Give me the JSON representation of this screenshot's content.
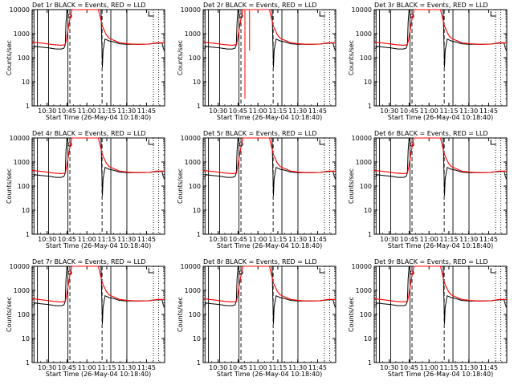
{
  "chart_data": [
    {
      "type": "line",
      "title": "Det 1r BLACK = Events, RED = LLD",
      "xlabel": "Start Time (26-May-04 10:18:40)",
      "ylabel": "Counts/sec"
    },
    {
      "type": "line",
      "title": "Det 2r BLACK = Events, RED = LLD",
      "xlabel": "Start Time (26-May-04 10:18:40)",
      "ylabel": "Counts/sec"
    },
    {
      "type": "line",
      "title": "Det 3r BLACK = Events, RED = LLD",
      "xlabel": "Start Time (26-May-04 10:18:40)",
      "ylabel": "Counts/sec"
    },
    {
      "type": "line",
      "title": "Det 4r BLACK = Events, RED = LLD",
      "xlabel": "Start Time (26-May-04 10:18:40)",
      "ylabel": "Counts/sec"
    },
    {
      "type": "line",
      "title": "Det 5r BLACK = Events, RED = LLD",
      "xlabel": "Start Time (26-May-04 10:18:40)",
      "ylabel": "Counts/sec"
    },
    {
      "type": "line",
      "title": "Det 6r BLACK = Events, RED = LLD",
      "xlabel": "Start Time (26-May-04 10:18:40)",
      "ylabel": "Counts/sec"
    },
    {
      "type": "line",
      "title": "Det 7r BLACK = Events, RED = LLD",
      "xlabel": "Start Time (26-May-04 10:18:40)",
      "ylabel": "Counts/sec"
    },
    {
      "type": "line",
      "title": "Det 8r BLACK = Events, RED = LLD",
      "xlabel": "Start Time (26-May-04 10:18:40)",
      "ylabel": "Counts/sec"
    },
    {
      "type": "line",
      "title": "Det 9r BLACK = Events, RED = LLD",
      "xlabel": "Start Time (26-May-04 10:18:40)",
      "ylabel": "Counts/sec"
    }
  ],
  "shared": {
    "y_scale": "log",
    "ylim": [
      1,
      10000
    ],
    "y_ticks": [
      1,
      10,
      100,
      1000,
      10000
    ],
    "x_range": [
      "10:18:40",
      "11:58:40"
    ],
    "x_ticks": [
      "10:30",
      "10:45",
      "11:00",
      "11:15",
      "11:30",
      "11:45"
    ],
    "colors": {
      "events": "#000000",
      "lld": "#ff0000",
      "axes": "#000000"
    }
  }
}
